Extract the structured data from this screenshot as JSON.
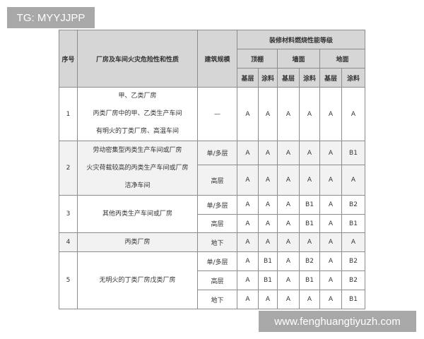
{
  "watermarks": {
    "top_left": "TG: MYYJJPP",
    "bottom_right": "www.fenghuangtiyuzh.com"
  },
  "header": {
    "no": "序号",
    "category": "厂房及车间火灾危险性和性质",
    "scale": "建筑规模",
    "grade": "装修材料燃烧性能等级",
    "groups": [
      "顶棚",
      "墙面",
      "地面"
    ],
    "sub": [
      "基层",
      "涂料",
      "基层",
      "涂料",
      "基层",
      "涂料"
    ]
  },
  "rows": [
    {
      "no": "1",
      "desc": [
        "甲、乙类厂房",
        "丙类厂房中的甲、乙类生产车间",
        "有明火的丁类厂房、高温车间"
      ],
      "sub": [
        {
          "scale": "—",
          "values": [
            "A",
            "A",
            "A",
            "A",
            "A",
            "A"
          ]
        }
      ]
    },
    {
      "no": "2",
      "desc": [
        "劳动密集型丙类生产车间或厂房",
        "火灾荷载较高的丙类生产车间或厂房",
        "洁净车间"
      ],
      "sub": [
        {
          "scale": "单/多层",
          "values": [
            "A",
            "A",
            "A",
            "A",
            "A",
            "B1"
          ]
        },
        {
          "scale": "高层",
          "values": [
            "A",
            "A",
            "A",
            "A",
            "A",
            "A"
          ]
        }
      ]
    },
    {
      "no": "3",
      "desc": [
        "其他丙类生产车间或厂房"
      ],
      "sub": [
        {
          "scale": "单/多层",
          "values": [
            "A",
            "A",
            "A",
            "B1",
            "A",
            "B2"
          ]
        },
        {
          "scale": "高层",
          "values": [
            "A",
            "A",
            "A",
            "B1",
            "A",
            "B1"
          ]
        }
      ]
    },
    {
      "no": "4",
      "desc": [
        "丙类厂房"
      ],
      "sub": [
        {
          "scale": "地下",
          "values": [
            "A",
            "A",
            "A",
            "A",
            "A",
            "A"
          ]
        }
      ]
    },
    {
      "no": "5",
      "desc": [
        "无明火的丁类厂房戊类厂房"
      ],
      "sub": [
        {
          "scale": "单/多层",
          "values": [
            "A",
            "B1",
            "A",
            "B2",
            "A",
            "B2"
          ]
        },
        {
          "scale": "高层",
          "values": [
            "A",
            "B1",
            "A",
            "B1",
            "A",
            "B2"
          ]
        },
        {
          "scale": "地下",
          "values": [
            "A",
            "A",
            "A",
            "A",
            "A",
            "B1"
          ]
        }
      ]
    }
  ]
}
